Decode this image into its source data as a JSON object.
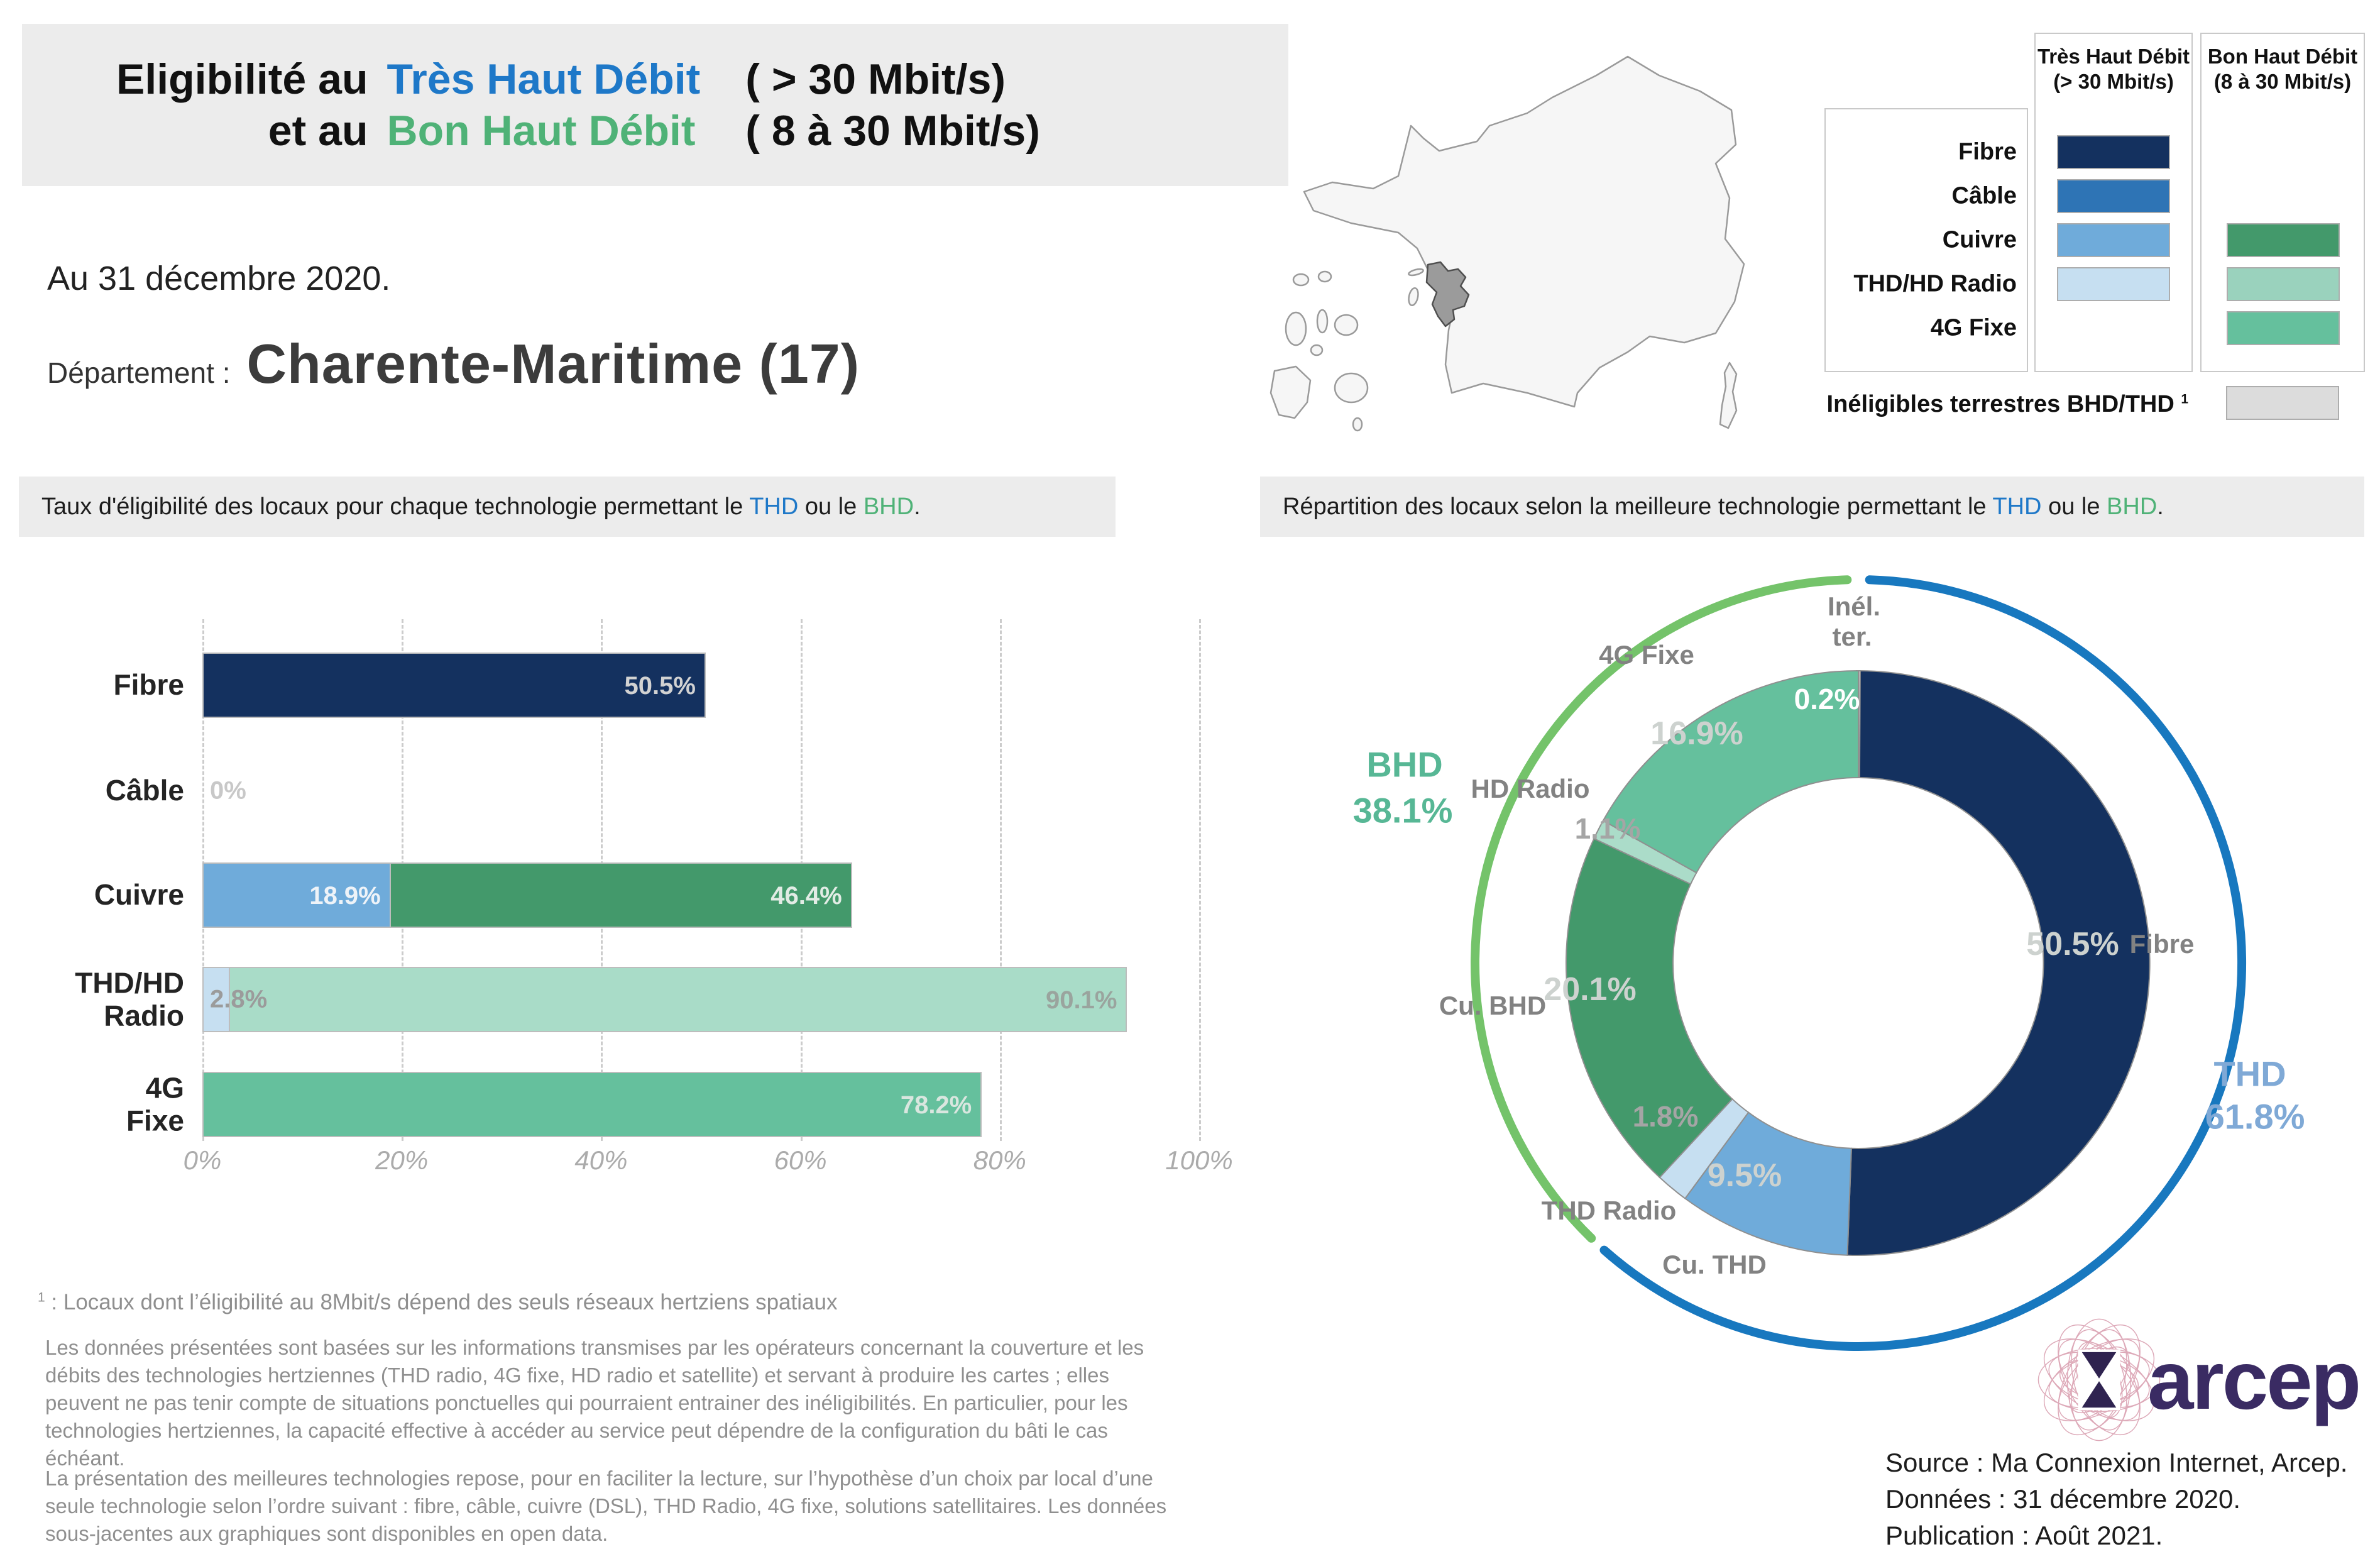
{
  "title": {
    "prefix_line1": "Eligibilité au",
    "thd_label": "Très Haut Débit",
    "thd_paren": "( > 30 Mbit/s)",
    "prefix_line2": "et au",
    "bhd_label": "Bon Haut Débit",
    "bhd_paren": "( 8 à 30 Mbit/s)"
  },
  "date_line": "Au 31 décembre 2020.",
  "department": {
    "label": "Département :",
    "name": "Charente-Maritime (17)"
  },
  "colors": {
    "thd_blue": "#1e78c8",
    "bhd_green": "#4fb277"
  },
  "legend": {
    "thd_header_l1": "Très Haut Débit",
    "thd_header_l2": "(> 30 Mbit/s)",
    "bhd_header_l1": "Bon Haut Débit",
    "bhd_header_l2": "(8 à 30 Mbit/s)",
    "rows": [
      {
        "label": "Fibre",
        "thd": "#14315f",
        "bhd": null
      },
      {
        "label": "Câble",
        "thd": "#2e74b5",
        "bhd": null
      },
      {
        "label": "Cuivre",
        "thd": "#6fabda",
        "bhd": "#43996b"
      },
      {
        "label": "THD/HD Radio",
        "thd": "#c6dff1",
        "bhd": "#9ad2bd"
      },
      {
        "label": "4G Fixe",
        "thd": null,
        "bhd": "#65c09d"
      }
    ],
    "ineligibles_label": "Inéligibles terrestres BHD/THD",
    "ineligibles_sup": "1",
    "ineligibles_color": "#dcdcdc"
  },
  "left_panel": {
    "header": {
      "pre": "Taux d'éligibilité des locaux pour chaque technologie permettant le ",
      "thd": "THD",
      "mid": " ou le ",
      "bhd": "BHD",
      "end": "."
    }
  },
  "right_panel": {
    "header": {
      "pre": "Répartition des locaux selon la meilleure technologie permettant le ",
      "thd": "THD",
      "mid": " ou le ",
      "bhd": "BHD",
      "end": "."
    },
    "donut_text": {
      "inel_l1": "Inél.",
      "inel_l2": "ter."
    }
  },
  "footnotes": {
    "sup": "1",
    "line1": " : Locaux dont l’éligibilité au 8Mbit/s dépend des seuls réseaux hertziens spatiaux",
    "para1": "Les données présentées sont basées sur les informations transmises par les opérateurs concernant la couverture et les débits des technologies hertziennes (THD radio, 4G fixe, HD radio et satellite) et servant à produire les cartes ; elles peuvent ne pas tenir compte de situations ponctuelles qui pourraient entrainer des inéligibilités. En particulier, pour les technologies hertziennes, la capacité effective à accéder au service peut dépendre de la configuration du bâti le cas échéant.",
    "para2": "La présentation des meilleures technologies repose, pour en faciliter la lecture, sur l’hypothèse d’un choix par local d’une seule technologie selon l’ordre suivant : fibre, câble, cuivre (DSL), THD Radio, 4G fixe, solutions satellitaires. Les données sous-jacentes aux graphiques sont disponibles en open data."
  },
  "logo_text": "arcep",
  "source_lines": {
    "l1": "Source : Ma Connexion Internet, Arcep.",
    "l2": "Données : 31 décembre 2020.",
    "l3": "Publication : Août 2021."
  },
  "chart_data": [
    {
      "type": "bar",
      "title": "Taux d'éligibilité des locaux pour chaque technologie permettant le THD ou le BHD.",
      "xlabel": "",
      "ylabel": "",
      "xlim": [
        0,
        100
      ],
      "x_ticks": [
        "0%",
        "20%",
        "40%",
        "60%",
        "80%",
        "100%"
      ],
      "grid": "dashed-vertical",
      "categories": [
        "Fibre",
        "Câble",
        "Cuivre",
        "THD/HD\nRadio",
        "4G\nFixe"
      ],
      "rows": [
        {
          "category": "Fibre",
          "segments": [
            {
              "name": "THD",
              "value": 50.5,
              "label": "50.5%",
              "color": "#14315f",
              "label_color": "#d2d2d2",
              "label_pos": "inside-right"
            }
          ]
        },
        {
          "category": "Câble",
          "segments": [
            {
              "name": "THD",
              "value": 0,
              "label": "0%",
              "color": "#2e74b5",
              "label_color": "#c8c8c8",
              "label_pos": "outside-left"
            }
          ]
        },
        {
          "category": "Cuivre",
          "segments": [
            {
              "name": "THD",
              "value": 18.9,
              "label": "18.9%",
              "color": "#6fabda",
              "label_color": "#eef3f8",
              "label_pos": "inside-right"
            },
            {
              "name": "BHD",
              "value": 46.4,
              "label": "46.4%",
              "color": "#43996b",
              "label_color": "#e2ece5",
              "label_pos": "inside-right"
            }
          ]
        },
        {
          "category": "THD/HD\nRadio",
          "segments": [
            {
              "name": "THD",
              "value": 2.8,
              "label": "2.8%",
              "color": "#c6dff1",
              "label_color": "#9b9b9b",
              "label_pos": "outside-left"
            },
            {
              "name": "BHD",
              "value": 90.1,
              "label": "90.1%",
              "color": "#a9dcc8",
              "label_color": "#9aa49e",
              "label_pos": "inside-right"
            }
          ]
        },
        {
          "category": "4G\nFixe",
          "segments": [
            {
              "name": "BHD",
              "value": 78.2,
              "label": "78.2%",
              "color": "#65c09d",
              "label_color": "#d9e6df",
              "label_pos": "inside-right"
            }
          ]
        }
      ]
    },
    {
      "type": "pie",
      "donut": true,
      "title": "Répartition des locaux selon la meilleure technologie permettant le THD ou le BHD.",
      "segments": [
        {
          "name": "Inél. ter.",
          "value": 0.2,
          "label": "0.2%",
          "color": "#d2d2d2"
        },
        {
          "name": "Fibre",
          "value": 50.5,
          "label": "50.5%",
          "color": "#14315f"
        },
        {
          "name": "Cu. THD",
          "value": 9.5,
          "label": "9.5%",
          "color": "#6fabda"
        },
        {
          "name": "THD Radio",
          "value": 1.8,
          "label": "1.8%",
          "color": "#c6dff1"
        },
        {
          "name": "Cu. BHD",
          "value": 20.1,
          "label": "20.1%",
          "color": "#43996b"
        },
        {
          "name": "HD Radio",
          "value": 1.1,
          "label": "1.1%",
          "color": "#abdcc9"
        },
        {
          "name": "4G Fixe",
          "value": 16.9,
          "label": "16.9%",
          "color": "#65c09d"
        }
      ],
      "outer_arcs": [
        {
          "name": "THD",
          "label": "THD",
          "value_label": "61.8%",
          "from": 0.2,
          "to": 62.0,
          "color": "#1878bf"
        },
        {
          "name": "BHD",
          "label": "BHD",
          "value_label": "38.1%",
          "from": 62.0,
          "to": 100.0,
          "color": "#74c36a"
        }
      ]
    }
  ]
}
